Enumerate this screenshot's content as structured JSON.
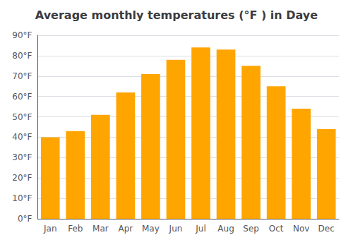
{
  "chart_data": {
    "type": "bar",
    "title": "Average monthly temperatures (°F ) in Daye",
    "categories": [
      "Jan",
      "Feb",
      "Mar",
      "Apr",
      "May",
      "Jun",
      "Jul",
      "Aug",
      "Sep",
      "Oct",
      "Nov",
      "Dec"
    ],
    "values": [
      40,
      43,
      51,
      62,
      71,
      78,
      84,
      83,
      75,
      65,
      54,
      44
    ],
    "color": "#FFA500",
    "ylim": [
      0,
      90
    ],
    "yticks": [
      {
        "value": 0,
        "label": "0°F"
      },
      {
        "value": 10,
        "label": "10°F"
      },
      {
        "value": 20,
        "label": "20°F"
      },
      {
        "value": 30,
        "label": "30°F"
      },
      {
        "value": 40,
        "label": "40°F"
      },
      {
        "value": 50,
        "label": "50°F"
      },
      {
        "value": 60,
        "label": "60°F"
      },
      {
        "value": 70,
        "label": "70°F"
      },
      {
        "value": 80,
        "label": "80°F"
      },
      {
        "value": 90,
        "label": "90°F"
      }
    ],
    "grid": true
  }
}
